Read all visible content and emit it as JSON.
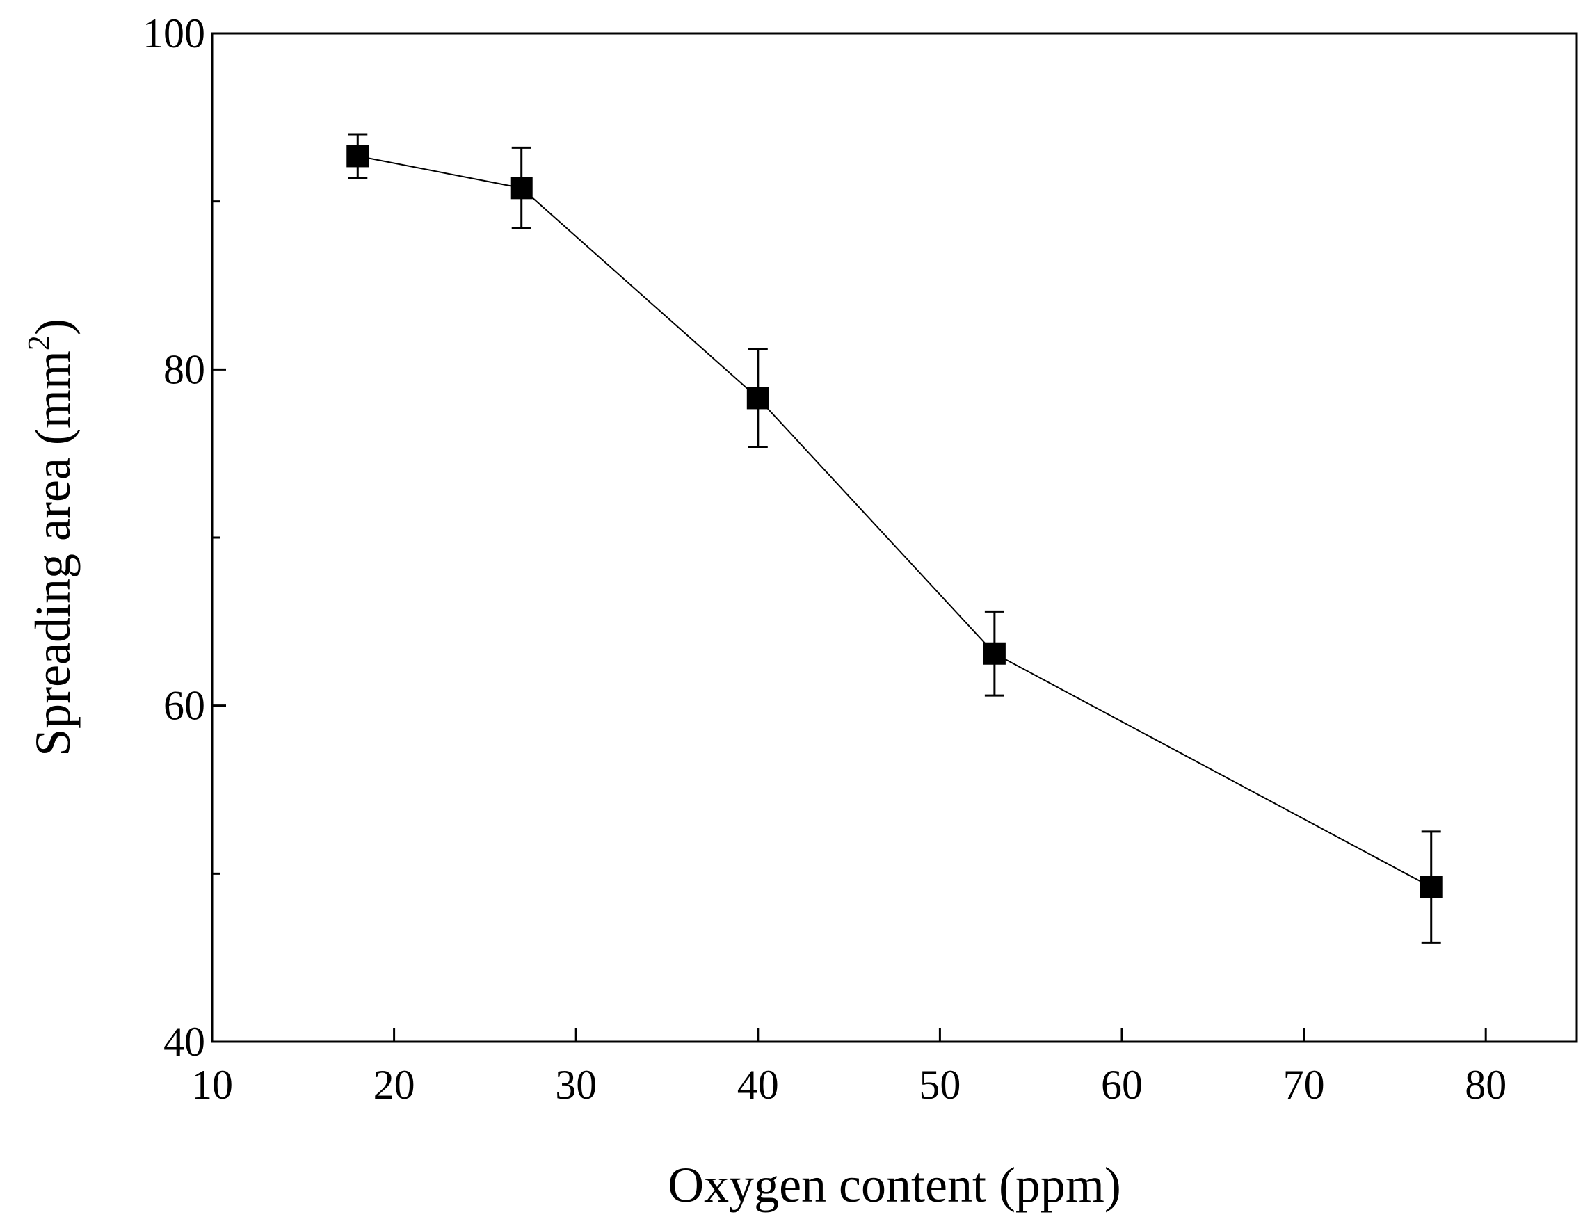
{
  "chart_data": {
    "type": "line",
    "title": "",
    "xlabel": "Oxygen content (ppm)",
    "ylabel": "Spreading area (mm",
    "ylabel_superscript": "2",
    "ylabel_suffix": ")",
    "xlim": [
      10,
      85
    ],
    "ylim": [
      40,
      100
    ],
    "xticks": [
      10,
      20,
      30,
      40,
      50,
      60,
      70,
      80
    ],
    "yticks_labeled": [
      40,
      60,
      80,
      100
    ],
    "yticks_minor": [
      50,
      70,
      90
    ],
    "grid": false,
    "legend": "none",
    "series": [
      {
        "name": "Spreading area",
        "marker": "filled-square",
        "color": "#000000",
        "x": [
          18,
          27,
          40,
          53,
          77
        ],
        "y": [
          92.7,
          90.8,
          78.3,
          63.1,
          49.2
        ],
        "error": [
          1.3,
          2.4,
          2.9,
          2.5,
          3.3
        ]
      }
    ]
  }
}
